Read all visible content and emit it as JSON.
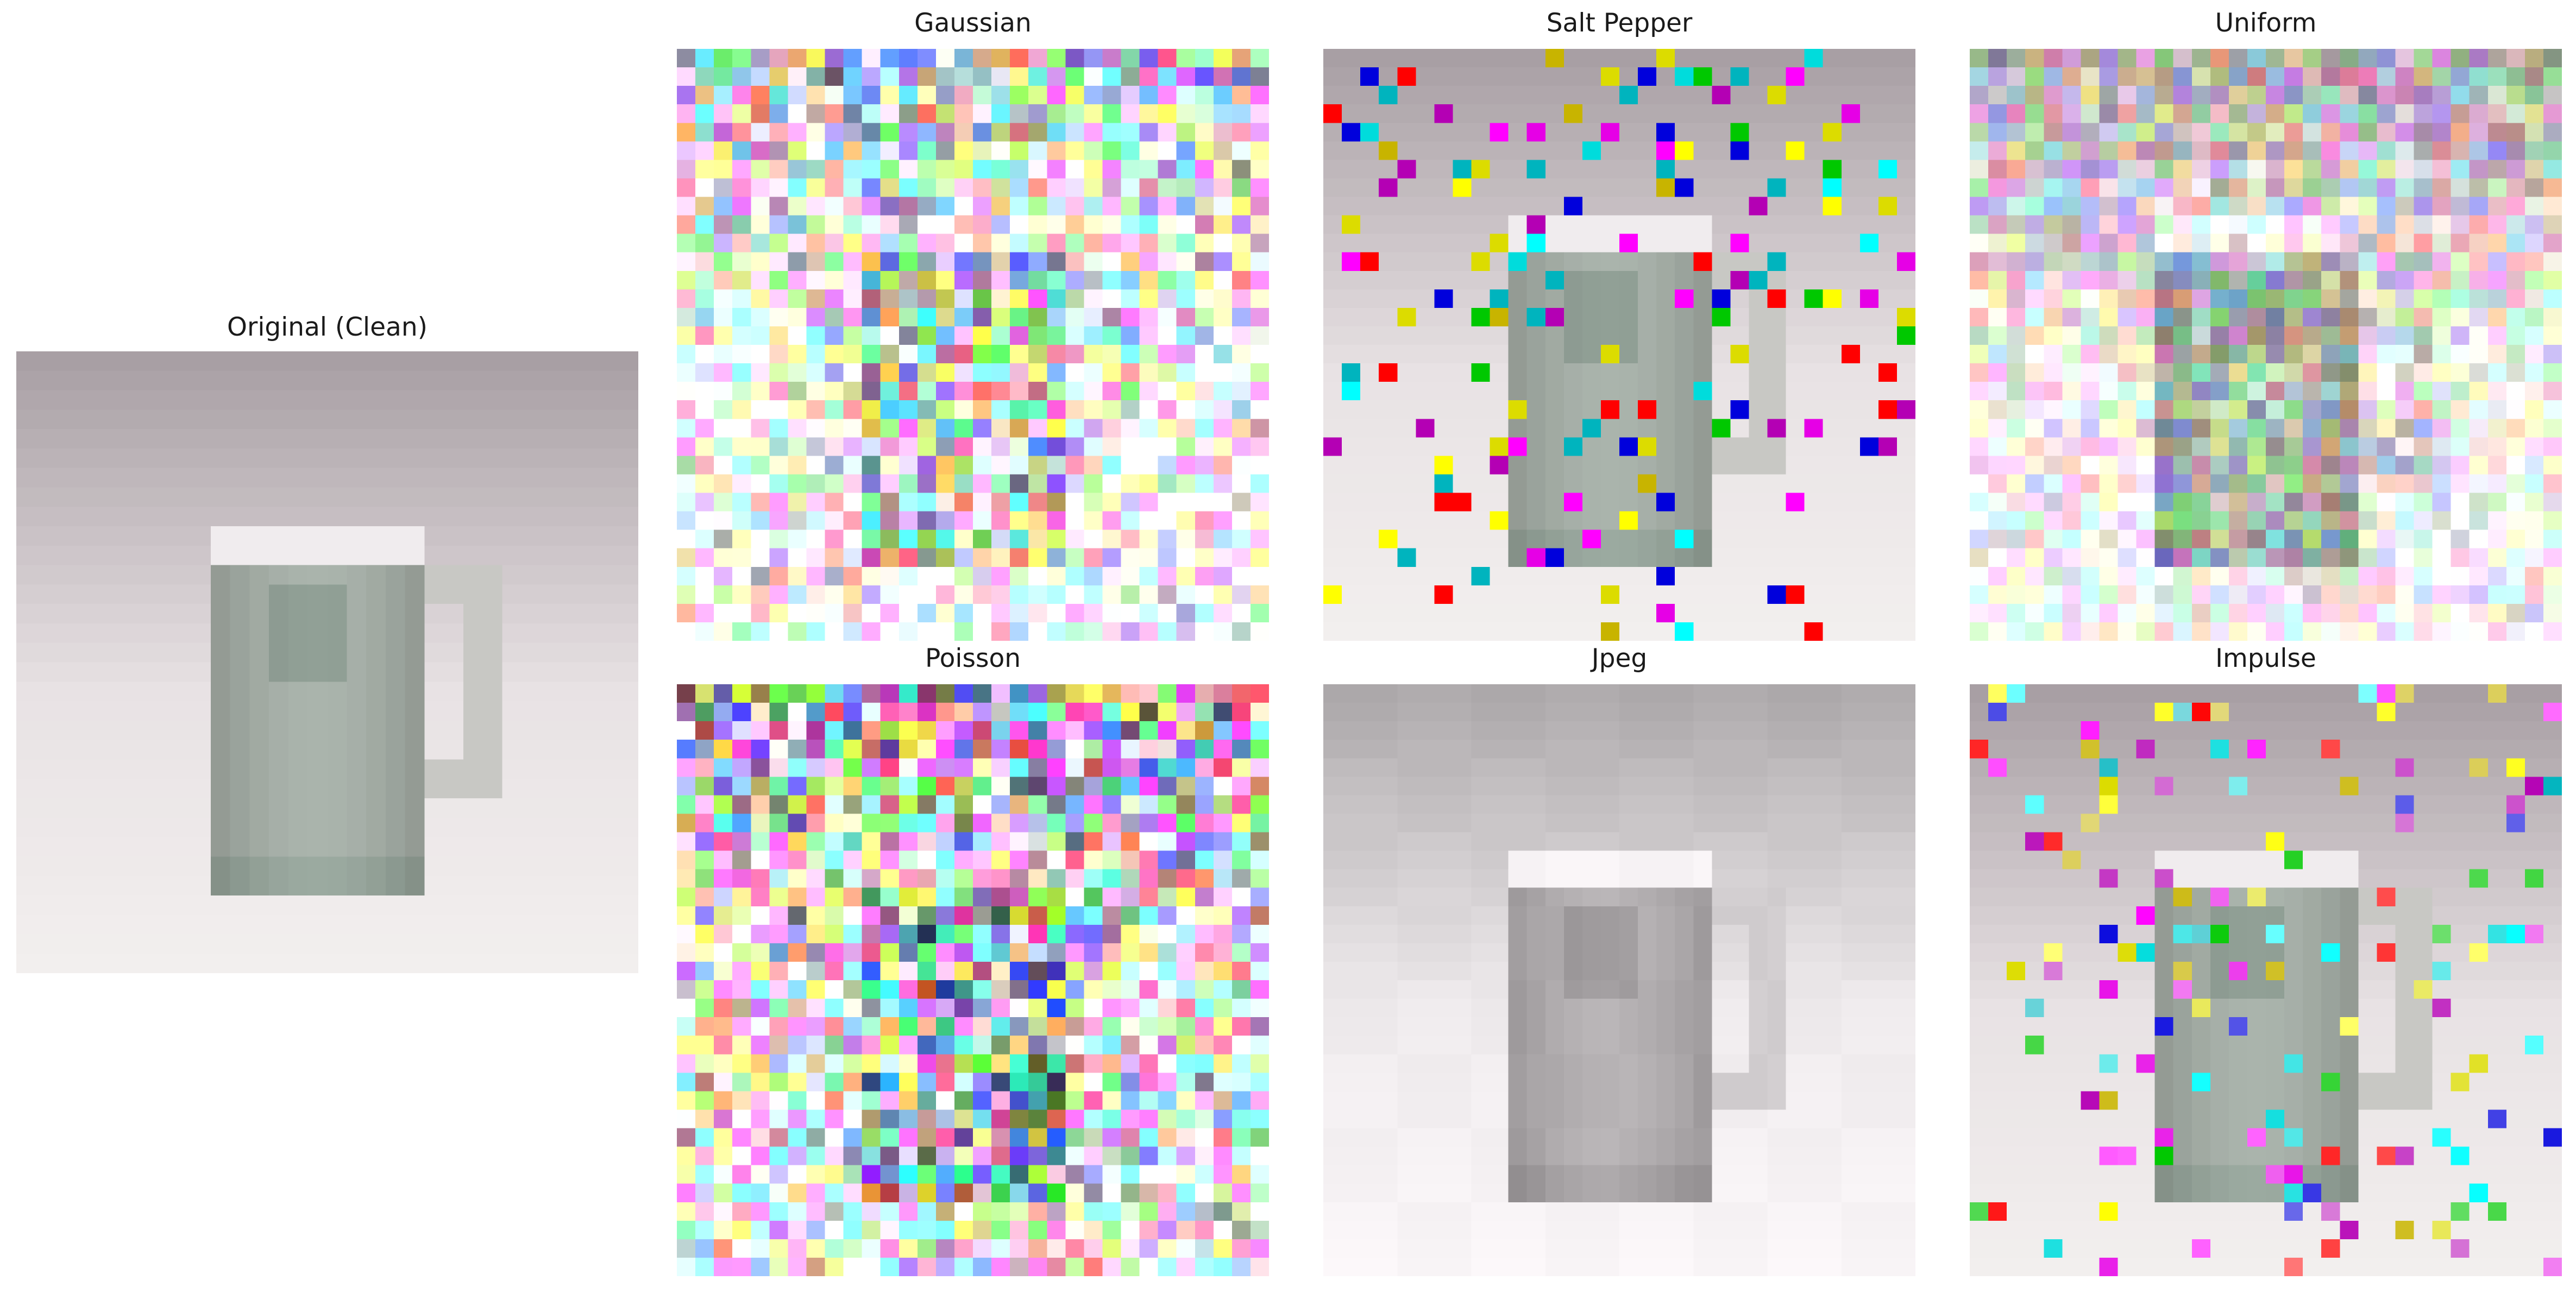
{
  "figure": {
    "panels": [
      {
        "id": "original",
        "title": "Original (Clean)",
        "noise": "none",
        "image_description_icon": "mug-image"
      },
      {
        "id": "gaussian",
        "title": "Gaussian",
        "noise": "gaussian",
        "image_description_icon": "mug-image"
      },
      {
        "id": "salt_pepper",
        "title": "Salt Pepper",
        "noise": "salt_pepper",
        "image_description_icon": "mug-image"
      },
      {
        "id": "uniform",
        "title": "Uniform",
        "noise": "uniform",
        "image_description_icon": "mug-image"
      },
      {
        "id": "poisson",
        "title": "Poisson",
        "noise": "poisson",
        "image_description_icon": "mug-image"
      },
      {
        "id": "jpeg",
        "title": "Jpeg",
        "noise": "jpeg",
        "image_description_icon": "mug-image"
      },
      {
        "id": "impulse",
        "title": "Impulse",
        "noise": "impulse",
        "image_description_icon": "mug-image"
      }
    ],
    "colors": {
      "background": "#ffffff",
      "mug_body": "#a9b5ad",
      "mug_rim": "#f2eef0",
      "backdrop_top": "#a89fa4",
      "backdrop_bottom": "#f1efee"
    }
  }
}
